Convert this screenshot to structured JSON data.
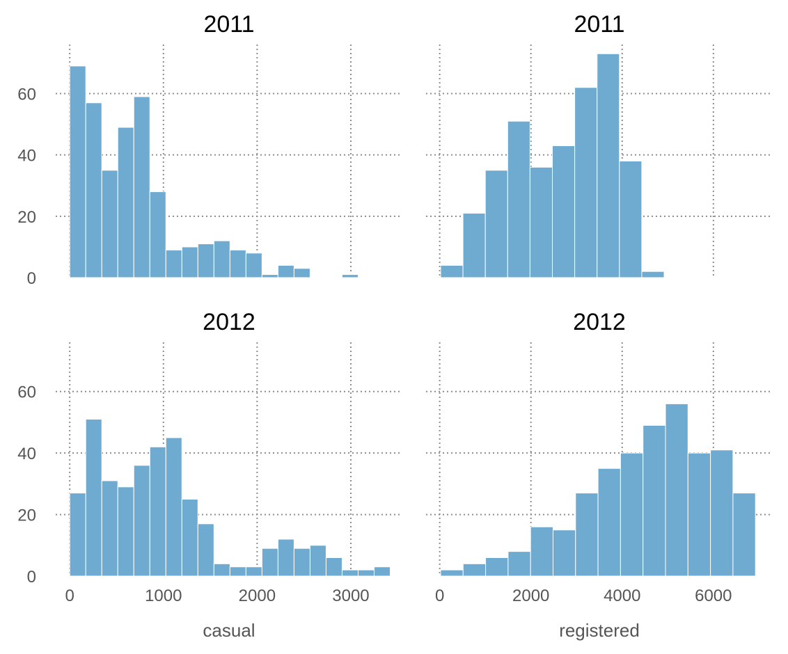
{
  "chart_data": [
    {
      "type": "bar",
      "title": "2011",
      "xlabel": "",
      "xlim": [
        -150,
        3550
      ],
      "ylim": [
        0,
        76
      ],
      "x_ticks": [
        0,
        1000,
        2000,
        3000
      ],
      "y_ticks": [
        0,
        20,
        40,
        60
      ],
      "show_x_tick_labels": false,
      "show_y_tick_labels": true,
      "grid": true,
      "color": "#6fabd1",
      "bin_start": 0,
      "bin_width": 171,
      "values": [
        69,
        57,
        35,
        49,
        59,
        28,
        9,
        10,
        11,
        12,
        9,
        8,
        1,
        4,
        3,
        0,
        0,
        1,
        0,
        0
      ]
    },
    {
      "type": "bar",
      "title": "2011",
      "xlabel": "",
      "xlim": [
        -300,
        7300
      ],
      "ylim": [
        0,
        76
      ],
      "x_ticks": [
        0,
        2000,
        4000,
        6000
      ],
      "y_ticks": [
        0,
        20,
        40,
        60
      ],
      "show_x_tick_labels": false,
      "show_y_tick_labels": false,
      "grid": true,
      "color": "#6fabd1",
      "bin_start": 20,
      "bin_width": 490,
      "values": [
        4,
        21,
        35,
        51,
        36,
        43,
        62,
        73,
        38,
        2
      ]
    },
    {
      "type": "bar",
      "title": "2012",
      "xlabel": "casual",
      "xlim": [
        -150,
        3550
      ],
      "ylim": [
        0,
        76
      ],
      "x_ticks": [
        0,
        1000,
        2000,
        3000
      ],
      "y_ticks": [
        0,
        20,
        40,
        60
      ],
      "show_x_tick_labels": true,
      "show_y_tick_labels": true,
      "grid": true,
      "color": "#6fabd1",
      "bin_start": 0,
      "bin_width": 171,
      "values": [
        27,
        51,
        31,
        29,
        36,
        42,
        45,
        25,
        17,
        4,
        3,
        3,
        9,
        12,
        9,
        10,
        6,
        2,
        2,
        3
      ]
    },
    {
      "type": "bar",
      "title": "2012",
      "xlabel": "registered",
      "xlim": [
        -300,
        7300
      ],
      "ylim": [
        0,
        76
      ],
      "x_ticks": [
        0,
        2000,
        4000,
        6000
      ],
      "y_ticks": [
        0,
        20,
        40,
        60
      ],
      "show_x_tick_labels": true,
      "show_y_tick_labels": false,
      "grid": true,
      "color": "#6fabd1",
      "bin_start": 20,
      "bin_width": 493,
      "values": [
        2,
        4,
        6,
        8,
        16,
        15,
        27,
        35,
        40,
        49,
        56,
        40,
        41,
        27
      ]
    }
  ]
}
